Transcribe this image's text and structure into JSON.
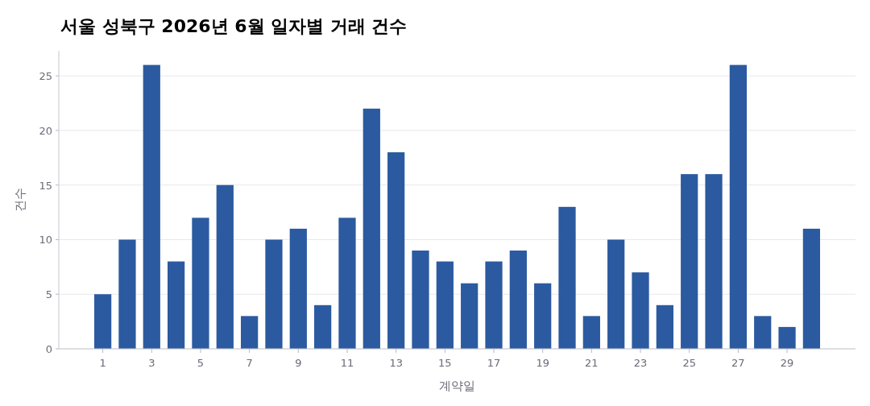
{
  "chart_data": {
    "type": "bar",
    "title": "서울 성북구 2026년 6월 일자별 거래 건수",
    "xlabel": "계약일",
    "ylabel": "건수",
    "x": [
      1,
      2,
      3,
      4,
      5,
      6,
      7,
      8,
      9,
      10,
      11,
      12,
      13,
      14,
      15,
      16,
      17,
      18,
      19,
      20,
      21,
      22,
      23,
      24,
      25,
      26,
      27,
      28,
      29,
      30
    ],
    "values": [
      5,
      10,
      26,
      8,
      12,
      15,
      3,
      10,
      11,
      4,
      12,
      22,
      18,
      9,
      8,
      6,
      8,
      9,
      6,
      13,
      3,
      10,
      7,
      4,
      16,
      16,
      26,
      3,
      2,
      11
    ],
    "color": "#2b5aa0",
    "xlim": [
      -0.8,
      31.8
    ],
    "ylim": [
      0,
      27.3
    ],
    "xticks": [
      1,
      3,
      5,
      7,
      9,
      11,
      13,
      15,
      17,
      19,
      21,
      23,
      25,
      27,
      29
    ],
    "yticks": [
      0,
      5,
      10,
      15,
      20,
      25
    ],
    "grid": "y"
  }
}
